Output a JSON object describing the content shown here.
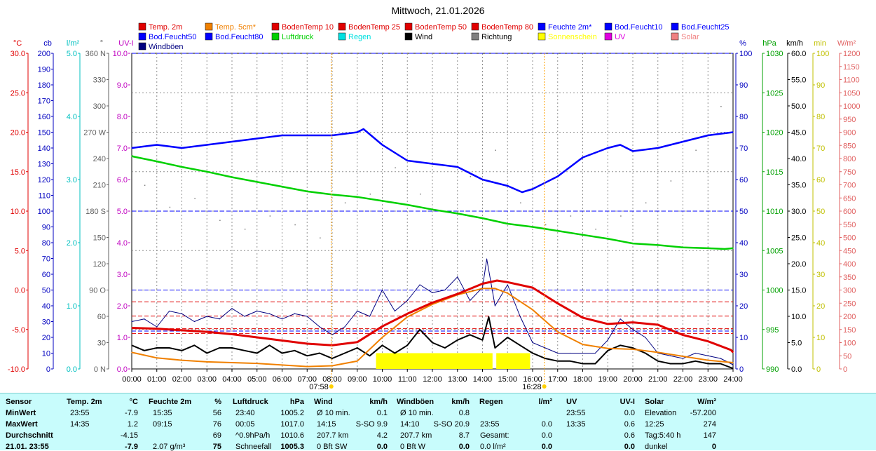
{
  "title": "Mittwoch, 21.01.2026",
  "legend": [
    {
      "label": "Temp. 2m",
      "color": "#e00000"
    },
    {
      "label": "Temp. 5cm*",
      "color": "#f08000"
    },
    {
      "label": "BodenTemp 10",
      "color": "#e00000"
    },
    {
      "label": "BodenTemp 25",
      "color": "#e00000"
    },
    {
      "label": "BodenTemp 50",
      "color": "#e00000"
    },
    {
      "label": "BodenTemp 80",
      "color": "#e00000"
    },
    {
      "label": "Feuchte 2m*",
      "color": "#0000ff"
    },
    {
      "label": "Bod.Feucht10",
      "color": "#0000ff"
    },
    {
      "label": "Bod.Feucht25",
      "color": "#0000ff"
    },
    {
      "label": "Bod.Feucht50",
      "color": "#0000ff"
    },
    {
      "label": "Bod.Feucht80",
      "color": "#0000ff"
    },
    {
      "label": "Luftdruck",
      "color": "#00d000"
    },
    {
      "label": "Regen",
      "color": "#00e0e0"
    },
    {
      "label": "Wind",
      "color": "#000000"
    },
    {
      "label": "Richtung",
      "color": "#808080"
    },
    {
      "label": "Sonnenschein",
      "color": "#ffff00"
    },
    {
      "label": "UV",
      "color": "#e000e0"
    },
    {
      "label": "Solar",
      "color": "#f08080"
    },
    {
      "label": "Windböen",
      "color": "#000080"
    }
  ],
  "left_axes": [
    {
      "unit": "°C",
      "color": "#e00000",
      "ticks": [
        "30.0",
        "25.0",
        "20.0",
        "15.0",
        "10.0",
        "5.0",
        "0.0",
        "-5.0",
        "-10.0"
      ]
    },
    {
      "unit": "cb",
      "color": "#0000c0",
      "ticks": [
        "200",
        "190",
        "180",
        "170",
        "160",
        "150",
        "140",
        "130",
        "120",
        "110",
        "100",
        "90",
        "80",
        "70",
        "60",
        "50",
        "40",
        "30",
        "20",
        "10",
        "0"
      ]
    },
    {
      "unit": "l/m²",
      "color": "#00c0c0",
      "ticks": [
        "5.0",
        "4.0",
        "3.0",
        "2.0",
        "1.0",
        "0.0"
      ]
    },
    {
      "unit": "°",
      "color": "#606060",
      "ticks": [
        "360 N",
        "330",
        "300",
        "270 W",
        "240",
        "210",
        "180 S",
        "150",
        "120",
        "90 O",
        "60",
        "30",
        "0 N"
      ]
    },
    {
      "unit": "UV-I",
      "color": "#c000c0",
      "ticks": [
        "10.0",
        "9.0",
        "8.0",
        "7.0",
        "6.0",
        "5.0",
        "4.0",
        "3.0",
        "2.0",
        "1.0",
        "0.0"
      ]
    }
  ],
  "right_axes": [
    {
      "unit": "%",
      "color": "#0000c0",
      "ticks": [
        "100",
        "90",
        "80",
        "70",
        "60",
        "50",
        "40",
        "30",
        "20",
        "10",
        "0"
      ]
    },
    {
      "unit": "hPa",
      "color": "#00a000",
      "ticks": [
        "1030",
        "1025",
        "1020",
        "1015",
        "1010",
        "1005",
        "1000",
        "995",
        "990"
      ]
    },
    {
      "unit": "km/h",
      "color": "#000000",
      "ticks": [
        "60.0",
        "55.0",
        "50.0",
        "45.0",
        "40.0",
        "35.0",
        "30.0",
        "25.0",
        "20.0",
        "15.0",
        "10.0",
        "5.0",
        "0.0"
      ]
    },
    {
      "unit": "min",
      "color": "#c0c000",
      "ticks": [
        "100",
        "90",
        "80",
        "70",
        "60",
        "50",
        "40",
        "30",
        "20",
        "10",
        "0"
      ]
    },
    {
      "unit": "W/m²",
      "color": "#e06060",
      "ticks": [
        "1200",
        "1150",
        "1100",
        "1050",
        "1000",
        "950",
        "900",
        "850",
        "800",
        "750",
        "700",
        "650",
        "600",
        "550",
        "500",
        "450",
        "400",
        "350",
        "300",
        "250",
        "200",
        "150",
        "100",
        "50",
        "0"
      ]
    }
  ],
  "x_ticks": [
    "00:00",
    "01:00",
    "02:00",
    "03:00",
    "04:00",
    "05:00",
    "06:00",
    "07:00",
    "08:00",
    "09:00",
    "10:00",
    "11:00",
    "12:00",
    "13:00",
    "14:00",
    "15:00",
    "16:00",
    "17:00",
    "18:00",
    "19:00",
    "20:00",
    "21:00",
    "22:00",
    "23:00",
    "24:00"
  ],
  "sunrise": "07:58",
  "sunset": "16:28",
  "chart_data": {
    "type": "line",
    "title": "Mittwoch, 21.01.2026",
    "x_unit": "hour",
    "xlim": [
      0,
      24
    ],
    "grid": true,
    "series": [
      {
        "name": "Temp. 2m",
        "unit": "°C",
        "color": "#e00000",
        "x": [
          0,
          1,
          2,
          3,
          4,
          5,
          6,
          7,
          8,
          9,
          10,
          11,
          12,
          13,
          14,
          14.58,
          15,
          16,
          17,
          18,
          19,
          20,
          21,
          22,
          23,
          23.92,
          24
        ],
        "y": [
          -4.8,
          -4.9,
          -5.1,
          -5.3,
          -5.6,
          -6.0,
          -6.4,
          -6.8,
          -7.0,
          -6.6,
          -4.6,
          -3.0,
          -1.6,
          -0.5,
          0.8,
          1.2,
          1.0,
          0.3,
          -1.7,
          -3.5,
          -4.3,
          -4.1,
          -4.4,
          -5.7,
          -6.5,
          -7.6,
          -7.9
        ]
      },
      {
        "name": "Temp. 5cm*",
        "unit": "°C",
        "color": "#f08000",
        "x": [
          0,
          1,
          2,
          3,
          4,
          5,
          6,
          7,
          8,
          9,
          10,
          11,
          12,
          13,
          14,
          14.5,
          15,
          16,
          17,
          18,
          19,
          20,
          21,
          22,
          23,
          24
        ],
        "y": [
          -7.9,
          -8.6,
          -8.9,
          -9.1,
          -9.2,
          -9.3,
          -9.5,
          -9.7,
          -9.6,
          -9.0,
          -6.0,
          -3.4,
          -1.8,
          -0.6,
          0.2,
          0.2,
          -0.4,
          -2.5,
          -5.3,
          -6.9,
          -7.4,
          -7.5,
          -7.9,
          -8.4,
          -8.9,
          -9.2
        ]
      },
      {
        "name": "Feuchte 2m*",
        "unit": "%",
        "color": "#0000ff",
        "x": [
          0,
          1,
          2,
          3,
          4,
          5,
          6,
          7,
          8,
          9,
          9.25,
          10,
          11,
          12,
          13,
          14,
          15,
          15.58,
          16,
          17,
          18,
          19,
          19.5,
          20,
          21,
          22,
          23,
          24
        ],
        "y": [
          70,
          71,
          70,
          71,
          72,
          73,
          74,
          74,
          74,
          75,
          76,
          71,
          66,
          65,
          64,
          60,
          58,
          56,
          57,
          61,
          67,
          70,
          71,
          69,
          70,
          72,
          74,
          75
        ]
      },
      {
        "name": "Luftdruck",
        "unit": "hPa",
        "color": "#00d000",
        "x": [
          0,
          0.08,
          1,
          2,
          3,
          4,
          5,
          6,
          7,
          8,
          9,
          10,
          11,
          12,
          13,
          14,
          15,
          16,
          17,
          18,
          19,
          20,
          21,
          22,
          23,
          23.67,
          24
        ],
        "y": [
          1017.0,
          1016.9,
          1016.3,
          1015.6,
          1015.0,
          1014.3,
          1013.7,
          1013.1,
          1012.5,
          1012.1,
          1011.8,
          1011.3,
          1010.8,
          1010.2,
          1009.7,
          1009.1,
          1008.4,
          1008.0,
          1007.5,
          1007.0,
          1006.5,
          1005.9,
          1005.7,
          1005.4,
          1005.3,
          1005.2,
          1005.3
        ]
      },
      {
        "name": "Wind",
        "unit": "km/h",
        "color": "#000000",
        "x": [
          0,
          0.5,
          1,
          1.5,
          2,
          2.5,
          3,
          3.5,
          4,
          4.5,
          5,
          5.5,
          6,
          6.5,
          7,
          7.5,
          8,
          8.5,
          9,
          9.5,
          10,
          10.5,
          11,
          11.5,
          12,
          12.5,
          13,
          13.5,
          14,
          14.25,
          14.5,
          15,
          15.5,
          16,
          16.5,
          17,
          17.5,
          18,
          18.5,
          19,
          19.5,
          20,
          20.5,
          21,
          21.5,
          22,
          22.5,
          23,
          23.5,
          24
        ],
        "y": [
          4.5,
          3.5,
          4.0,
          4.0,
          3.5,
          4.5,
          3.0,
          4.0,
          4.0,
          3.5,
          3.0,
          4.5,
          3.0,
          3.5,
          2.5,
          3.0,
          2.0,
          3.0,
          4.0,
          2.5,
          4.5,
          3.0,
          4.5,
          7.5,
          5.0,
          4.0,
          5.5,
          6.5,
          5.5,
          9.9,
          4.0,
          6.0,
          4.5,
          3.0,
          2.0,
          1.5,
          1.5,
          1.0,
          1.0,
          3.5,
          4.5,
          4.0,
          3.0,
          1.5,
          1.0,
          1.0,
          1.5,
          1.0,
          1.0,
          0.1
        ]
      },
      {
        "name": "Windböen",
        "unit": "km/h",
        "color": "#000080",
        "x": [
          0,
          0.5,
          1,
          1.5,
          2,
          2.5,
          3,
          3.5,
          4,
          4.5,
          5,
          5.5,
          6,
          6.5,
          7,
          7.5,
          8,
          8.5,
          9,
          9.5,
          10,
          10.5,
          11,
          11.5,
          12,
          12.5,
          13,
          13.5,
          14,
          14.17,
          14.5,
          15,
          15.5,
          16,
          16.5,
          17,
          17.5,
          18,
          18.5,
          19,
          19.5,
          20,
          20.5,
          21,
          21.5,
          22,
          22.5,
          23,
          23.5,
          24
        ],
        "y": [
          9.0,
          9.5,
          8.0,
          11.0,
          10.5,
          9.0,
          10.0,
          9.5,
          11.5,
          10.0,
          11.0,
          10.5,
          9.5,
          10.5,
          10.0,
          8.0,
          6.5,
          8.0,
          11.0,
          10.0,
          15.0,
          11.0,
          13.0,
          16.0,
          14.5,
          15.0,
          17.5,
          13.0,
          15.5,
          20.9,
          12.0,
          16.0,
          10.0,
          5.0,
          4.0,
          3.0,
          3.0,
          3.0,
          3.0,
          5.5,
          9.5,
          7.5,
          6.0,
          3.0,
          2.5,
          2.0,
          3.0,
          2.5,
          2.0,
          0.8
        ]
      },
      {
        "name": "Sonnenschein",
        "unit": "min",
        "color": "#ffff00",
        "x": [
          9.75,
          10.5,
          11,
          11.5,
          12,
          12.5,
          13,
          13.5,
          14,
          14.4,
          14.5,
          15,
          15.5,
          15.9
        ],
        "y": [
          5,
          5,
          5,
          5,
          5,
          5,
          5,
          5,
          5,
          5,
          5,
          5,
          5,
          5
        ]
      },
      {
        "name": "Richtung",
        "unit": "°",
        "color": "#808080",
        "x": [
          0.5,
          1.5,
          2.5,
          3.5,
          4.5,
          5.5,
          6.5,
          7.5,
          8.5,
          9.5,
          10.5,
          11.5,
          12.5,
          13.5,
          14.5,
          15.5,
          16.5,
          17.5,
          18.5,
          19.5,
          20.5,
          21.5,
          22.5,
          23.5
        ],
        "y": [
          210,
          185,
          195,
          170,
          160,
          175,
          165,
          150,
          190,
          200,
          230,
          200,
          180,
          220,
          250,
          190,
          165,
          175,
          160,
          175,
          190,
          215,
          250,
          300
        ]
      }
    ],
    "reference_lines": {
      "soil_temp_C": [
        -1.5,
        -3.3,
        -4.9,
        -5.5
      ],
      "soil_moisture_pct": [
        12,
        25,
        50,
        100
      ]
    }
  },
  "stats": {
    "headers": [
      "Sensor",
      "Temp. 2m",
      "°C",
      "Feuchte 2m",
      "%",
      "Luftdruck",
      "hPa",
      "Wind",
      "km/h",
      "Windböen",
      "km/h",
      "Regen",
      "l/m²",
      "UV",
      "UV-I",
      "Solar",
      "W/m²"
    ],
    "rows": [
      {
        "label": "MinWert",
        "cells": [
          "23:55",
          "-7.9",
          "15:35",
          "56",
          "23:40",
          "1005.2",
          "Ø 10 min.",
          "0.1",
          "Ø 10 min.",
          "0.8",
          "",
          "",
          "23:55",
          "0.0",
          "Elevation",
          "-57.200"
        ]
      },
      {
        "label": "MaxWert",
        "cells": [
          "14:35",
          "1.2",
          "09:15",
          "76",
          "00:05",
          "1017.0",
          "14:15",
          "S-SO 9.9",
          "14:10",
          "S-SO 20.9",
          "23:55",
          "0.0",
          "13:35",
          "0.6",
          "12:25",
          "274"
        ]
      },
      {
        "label": "Durchschnitt",
        "cells": [
          "",
          "-4.15",
          "",
          "69",
          "^0.9hPa/h",
          "1010.6",
          "207.7 km",
          "4.2",
          "207.7 km",
          "8.7",
          "Gesamt:",
          "0.0",
          "",
          "0.6",
          "Tag:5:40 h",
          "147"
        ]
      },
      {
        "label": "21.01. 23:55",
        "cells": [
          "",
          "-7.9",
          "2.07 g/m³",
          "75",
          "Schneefall",
          "1005.3",
          "0 Bft SW",
          "0.0",
          "0 Bft W",
          "0.0",
          "0.0 l/m²",
          "0.0",
          "",
          "0.0",
          "dunkel",
          "0"
        ]
      }
    ]
  }
}
